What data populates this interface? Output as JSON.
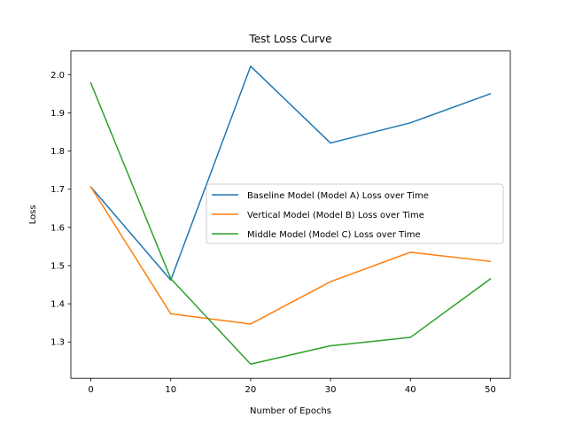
{
  "chart_data": {
    "type": "line",
    "title": "Test Loss Curve",
    "xlabel": "Number of Epochs",
    "ylabel": "Loss",
    "x": [
      0,
      10,
      20,
      30,
      40,
      50
    ],
    "xlim": [
      -2.5,
      52.5
    ],
    "ylim": [
      1.205,
      2.062
    ],
    "xticks": [
      0,
      10,
      20,
      30,
      40,
      50
    ],
    "xtick_labels": [
      "0",
      "10",
      "20",
      "30",
      "40",
      "50"
    ],
    "yticks": [
      1.3,
      1.4,
      1.5,
      1.6,
      1.7,
      1.8,
      1.9,
      2.0
    ],
    "ytick_labels": [
      "1.3",
      "1.4",
      "1.5",
      "1.6",
      "1.7",
      "1.8",
      "1.9",
      "2.0"
    ],
    "grid": false,
    "legend_position": "center-right",
    "series": [
      {
        "name": "Baseline Model (Model A) Loss over Time",
        "color": "#1f77b4",
        "values": [
          1.706,
          1.462,
          2.022,
          1.821,
          1.874,
          1.95
        ]
      },
      {
        "name": "Vertical Model (Model B) Loss over Time",
        "color": "#ff7f0e",
        "values": [
          1.706,
          1.374,
          1.347,
          1.458,
          1.535,
          1.511
        ]
      },
      {
        "name": "Middle Model (Model C) Loss over Time",
        "color": "#2ca02c",
        "values": [
          1.978,
          1.466,
          1.242,
          1.29,
          1.312,
          1.465
        ]
      }
    ]
  }
}
